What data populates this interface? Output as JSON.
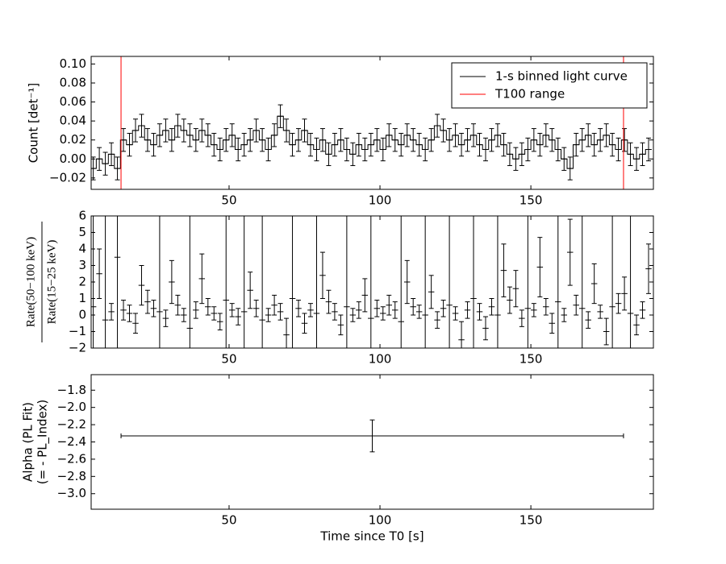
{
  "chart_data": [
    {
      "type": "errorbar",
      "ylabel": "Count [det⁻¹]",
      "xlim": [
        4.3,
        190.6
      ],
      "xticks": [
        50,
        100,
        150
      ],
      "ylim": [
        -0.032,
        0.108
      ],
      "yticks": [
        {
          "value": -0.02,
          "label": "−0.02"
        },
        {
          "value": 0,
          "label": "0.00"
        },
        {
          "value": 0.02,
          "label": "0.02"
        },
        {
          "value": 0.04,
          "label": "0.04"
        },
        {
          "value": 0.06,
          "label": "0.06"
        },
        {
          "value": 0.08,
          "label": "0.08"
        },
        {
          "value": 0.1,
          "label": "0.10"
        }
      ],
      "legend": "upper right",
      "step": true,
      "series": [
        {
          "name": "1-s binned light curve",
          "color": "#000000",
          "x": [
            5,
            7,
            9,
            11,
            13,
            15,
            17,
            19,
            21,
            23,
            25,
            27,
            29,
            31,
            33,
            35,
            37,
            39,
            41,
            43,
            45,
            47,
            49,
            51,
            53,
            55,
            57,
            59,
            61,
            63,
            65,
            67,
            69,
            71,
            73,
            75,
            77,
            79,
            81,
            83,
            85,
            87,
            89,
            91,
            93,
            95,
            97,
            99,
            101,
            103,
            105,
            107,
            109,
            111,
            113,
            115,
            117,
            119,
            121,
            123,
            125,
            127,
            129,
            131,
            133,
            135,
            137,
            139,
            141,
            143,
            145,
            147,
            149,
            151,
            153,
            155,
            157,
            159,
            161,
            163,
            165,
            167,
            169,
            171,
            173,
            175,
            177,
            179,
            181,
            183,
            185,
            187,
            189
          ],
          "values": [
            -0.01,
            0.0,
            -0.005,
            0.005,
            -0.01,
            0.02,
            0.015,
            0.03,
            0.035,
            0.02,
            0.015,
            0.025,
            0.03,
            0.02,
            0.035,
            0.03,
            0.025,
            0.02,
            0.03,
            0.025,
            0.015,
            0.01,
            0.02,
            0.025,
            0.01,
            0.015,
            0.02,
            0.03,
            0.02,
            0.01,
            0.025,
            0.045,
            0.03,
            0.015,
            0.02,
            0.03,
            0.015,
            0.01,
            0.02,
            0.005,
            0.015,
            0.02,
            0.01,
            0.005,
            0.015,
            0.01,
            0.015,
            0.02,
            0.01,
            0.025,
            0.02,
            0.015,
            0.025,
            0.02,
            0.015,
            0.01,
            0.02,
            0.035,
            0.03,
            0.02,
            0.025,
            0.015,
            0.02,
            0.025,
            0.015,
            0.01,
            0.02,
            0.025,
            0.015,
            0.005,
            0.0,
            0.005,
            0.01,
            0.02,
            0.015,
            0.025,
            0.02,
            0.01,
            0.0,
            -0.01,
            0.015,
            0.02,
            0.025,
            0.015,
            0.02,
            0.025,
            0.015,
            0.01,
            0.02,
            0.005,
            0.0,
            0.005,
            0.01
          ],
          "error": 0.012
        }
      ],
      "vlines": {
        "name": "T100 range",
        "color": "#ff0000",
        "x": [
          14.2,
          180.7
        ]
      }
    },
    {
      "type": "errorbar",
      "ylabel": {
        "numerator": "Rate(50−100 keV)",
        "denominator": "Rate(15−25 keV)"
      },
      "xlim": [
        4.3,
        190.6
      ],
      "xticks": [
        50,
        100,
        150
      ],
      "ylim": [
        -2,
        6
      ],
      "yticks": [
        {
          "value": -2,
          "label": "−2"
        },
        {
          "value": -1,
          "label": "−1"
        },
        0,
        1,
        2,
        3,
        4,
        5,
        6
      ],
      "series": [
        {
          "color": "#000000",
          "x": [
            5,
            7,
            9,
            11,
            13,
            15,
            17,
            19,
            21,
            23,
            25,
            27,
            29,
            31,
            33,
            35,
            37,
            39,
            41,
            43,
            45,
            47,
            49,
            51,
            53,
            55,
            57,
            59,
            61,
            63,
            65,
            67,
            69,
            71,
            73,
            75,
            77,
            79,
            81,
            83,
            85,
            87,
            89,
            91,
            93,
            95,
            97,
            99,
            101,
            103,
            105,
            107,
            109,
            111,
            113,
            115,
            117,
            119,
            121,
            123,
            125,
            127,
            129,
            131,
            133,
            135,
            137,
            139,
            141,
            143,
            145,
            147,
            149,
            151,
            153,
            155,
            157,
            159,
            161,
            163,
            165,
            167,
            169,
            171,
            173,
            175,
            177,
            179,
            181,
            183,
            185,
            187,
            189
          ],
          "values": [
            0.5,
            2.5,
            -0.3,
            0.2,
            3.5,
            0.3,
            0.1,
            -0.5,
            1.8,
            0.8,
            0.4,
            0.2,
            -0.2,
            2.0,
            0.6,
            0.0,
            -0.8,
            0.3,
            2.2,
            0.5,
            0.1,
            -0.4,
            0.9,
            0.3,
            -0.1,
            0.2,
            1.5,
            0.4,
            -0.3,
            0.0,
            0.6,
            0.2,
            -1.2,
            1.0,
            0.4,
            -0.5,
            0.3,
            0.1,
            2.4,
            0.8,
            0.2,
            -0.6,
            0.5,
            0.0,
            0.3,
            1.2,
            -0.2,
            0.4,
            0.1,
            0.6,
            0.3,
            -0.4,
            2.0,
            0.5,
            0.2,
            0.0,
            1.4,
            -0.3,
            0.4,
            0.6,
            0.1,
            -1.5,
            0.3,
            1.0,
            0.2,
            -0.8,
            0.5,
            0.0,
            2.7,
            0.9,
            1.6,
            -0.2,
            0.4,
            0.3,
            2.9,
            0.5,
            -0.5,
            0.8,
            0.0,
            3.8,
            0.6,
            0.4,
            -0.3,
            1.9,
            0.2,
            -1.0,
            0.5,
            0.7,
            1.3,
            0.1,
            -0.6,
            0.3,
            2.8
          ],
          "error": [
            8,
            1.5,
            8,
            0.5,
            8,
            0.6,
            0.5,
            0.6,
            1.2,
            0.7,
            0.5,
            8,
            0.5,
            1.3,
            0.6,
            0.4,
            8,
            0.5,
            1.5,
            0.5,
            0.4,
            0.5,
            8,
            0.4,
            0.5,
            8,
            1.1,
            0.5,
            8,
            0.4,
            0.6,
            0.5,
            1.0,
            8,
            0.5,
            0.6,
            0.4,
            8,
            1.4,
            0.7,
            0.5,
            0.6,
            8,
            0.4,
            0.5,
            1.0,
            8,
            0.5,
            0.4,
            0.6,
            0.5,
            8,
            1.3,
            0.5,
            0.4,
            8,
            1.0,
            0.5,
            0.5,
            8,
            0.4,
            1.1,
            0.5,
            8,
            0.5,
            0.7,
            0.5,
            8,
            1.6,
            0.8,
            1.1,
            0.5,
            8,
            0.4,
            1.8,
            0.5,
            0.6,
            8,
            0.4,
            2.0,
            0.6,
            8,
            0.5,
            1.2,
            0.4,
            0.8,
            8,
            0.6,
            1.0,
            8,
            0.6,
            0.5,
            1.5
          ]
        }
      ]
    },
    {
      "type": "errorbar",
      "ylabel": [
        "Alpha (PL Fit)",
        "(= - PL_Index)"
      ],
      "xlabel": "Time since T0 [s]",
      "xlim": [
        4.3,
        190.6
      ],
      "xticks": [
        50,
        100,
        150
      ],
      "ylim": [
        -3.18,
        -1.62
      ],
      "yticks": [
        {
          "value": -3.0,
          "label": "−3.0"
        },
        {
          "value": -2.8,
          "label": "−2.8"
        },
        {
          "value": -2.6,
          "label": "−2.6"
        },
        {
          "value": -2.4,
          "label": "−2.4"
        },
        {
          "value": -2.2,
          "label": "−2.2"
        },
        {
          "value": -2.0,
          "label": "−2.0"
        },
        {
          "value": -1.8,
          "label": "−1.8"
        }
      ],
      "series": [
        {
          "color": "#000000",
          "x": [
            97.45
          ],
          "xerr": [
            83.25
          ],
          "values": [
            -2.33
          ],
          "error": [
            0.185
          ]
        }
      ]
    }
  ]
}
